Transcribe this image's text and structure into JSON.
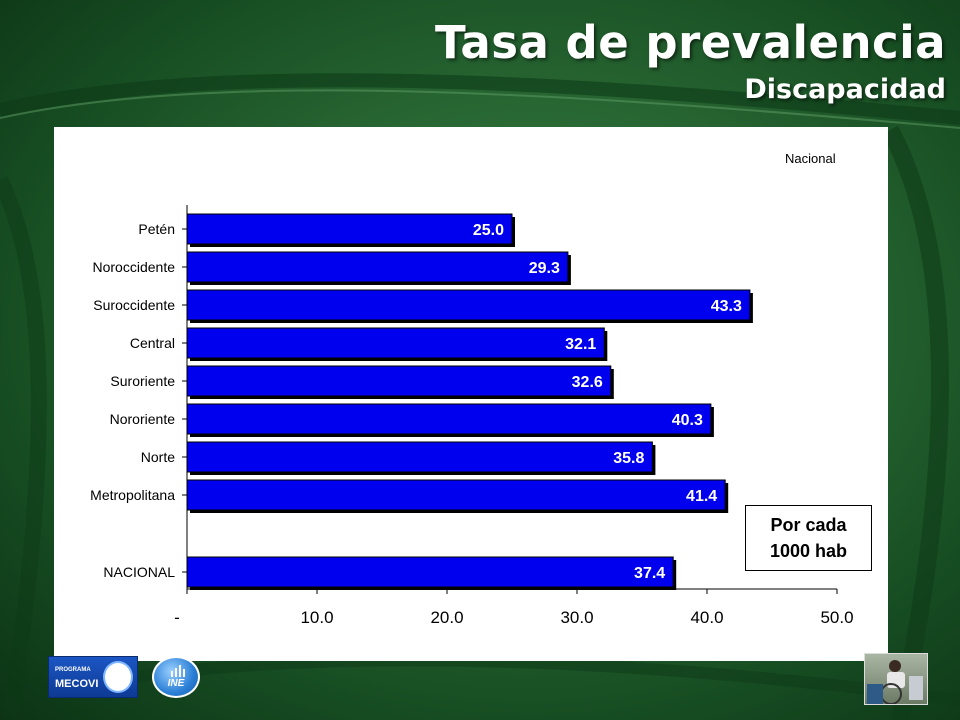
{
  "header": {
    "title": "Tasa de prevalencia",
    "subtitle": "Discapacidad"
  },
  "note": {
    "line1": "Por cada",
    "line2": "1000 hab"
  },
  "logos": {
    "mecovi_small": "PROGRAMA",
    "mecovi_big": "MECOVI",
    "ine_text": "INE"
  },
  "colors": {
    "bar_fill": "#0000ee",
    "bar_edge": "#000000",
    "label": "#ffffff",
    "background": "#2a6a35"
  },
  "chart_data": {
    "type": "bar",
    "orientation": "horizontal",
    "legend_label": "Nacional",
    "categories": [
      "Petén",
      "Noroccidente",
      "Suroccidente",
      "Central",
      "Suroriente",
      "Nororiente",
      "Norte",
      "Metropolitana",
      "NACIONAL"
    ],
    "values": [
      25.0,
      29.3,
      43.3,
      32.1,
      32.6,
      40.3,
      35.8,
      41.4,
      37.4
    ],
    "data_labels": [
      "25.0",
      "29.3",
      "43.3",
      "32.1",
      "32.6",
      "40.3",
      "35.8",
      "41.4",
      "37.4"
    ],
    "xlim": [
      0,
      50
    ],
    "x_ticks": [
      "-",
      "10.0",
      "20.0",
      "30.0",
      "40.0",
      "50.0"
    ],
    "grid": false,
    "legend_position": "top-right"
  }
}
